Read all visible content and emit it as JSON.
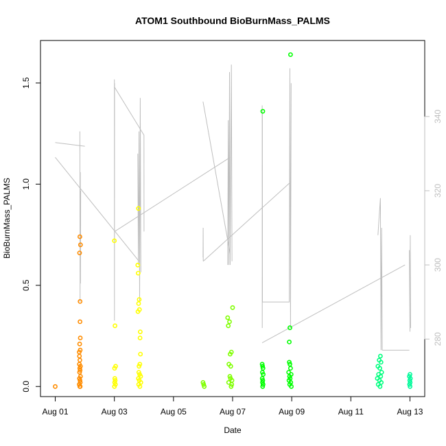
{
  "chart_data": {
    "type": "scatter",
    "title": "ATOM1 Southbound BioBurnMass_PALMS",
    "xlabel": "Date",
    "ylabel": "BioBurnMass_PALMS",
    "xlim": [
      "2016-08-00T12:00",
      "2016-08-13T12:00"
    ],
    "ylim": [
      -0.05,
      1.71
    ],
    "x_ticks": [
      {
        "value": "2016-08-01",
        "label": "Aug 01"
      },
      {
        "value": "2016-08-03",
        "label": "Aug 03"
      },
      {
        "value": "2016-08-05",
        "label": "Aug 05"
      },
      {
        "value": "2016-08-07",
        "label": "Aug 07"
      },
      {
        "value": "2016-08-09",
        "label": "Aug 09"
      },
      {
        "value": "2016-08-11",
        "label": "Aug 11"
      },
      {
        "value": "2016-08-13",
        "label": "Aug 13"
      }
    ],
    "y_ticks": [
      {
        "value": 0.0,
        "label": "0.0"
      },
      {
        "value": 0.5,
        "label": "0.5"
      },
      {
        "value": 1.0,
        "label": "1.0"
      },
      {
        "value": 1.5,
        "label": "1.5"
      }
    ],
    "secondary_axis": {
      "side": "right",
      "color": "#bebebe",
      "ylim": [
        264.5,
        360.5
      ],
      "ticks": [
        {
          "value": 280,
          "label": "280"
        },
        {
          "value": 300,
          "label": "300"
        },
        {
          "value": 320,
          "label": "320"
        },
        {
          "value": 340,
          "label": "340"
        }
      ]
    },
    "grid": false,
    "legend": "none",
    "series": [
      {
        "color": "#ff8c00",
        "points": [
          [
            "2016-08-01T00:00",
            0.0
          ],
          [
            "2016-08-01T20:00",
            0.74
          ],
          [
            "2016-08-01T20:30",
            0.7
          ],
          [
            "2016-08-01T19:45",
            0.66
          ],
          [
            "2016-08-01T20:10",
            0.42
          ],
          [
            "2016-08-01T20:05",
            0.32
          ],
          [
            "2016-08-01T20:20",
            0.24
          ],
          [
            "2016-08-01T19:50",
            0.21
          ],
          [
            "2016-08-01T20:15",
            0.18
          ],
          [
            "2016-08-01T19:30",
            0.17
          ],
          [
            "2016-08-01T19:40",
            0.15
          ],
          [
            "2016-08-01T20:00",
            0.13
          ],
          [
            "2016-08-01T19:35",
            0.11
          ],
          [
            "2016-08-01T20:25",
            0.1
          ],
          [
            "2016-08-01T19:55",
            0.09
          ],
          [
            "2016-08-01T20:10",
            0.08
          ],
          [
            "2016-08-01T19:45",
            0.07
          ],
          [
            "2016-08-01T20:30",
            0.05
          ],
          [
            "2016-08-01T19:40",
            0.04
          ],
          [
            "2016-08-01T20:05",
            0.03
          ],
          [
            "2016-08-01T20:20",
            0.02
          ],
          [
            "2016-08-01T19:30",
            0.01
          ],
          [
            "2016-08-01T19:55",
            0.0
          ],
          [
            "2016-08-01T20:15",
            0.0
          ]
        ]
      },
      {
        "color": "#ffff00",
        "points": [
          [
            "2016-08-03T00:00",
            0.72
          ],
          [
            "2016-08-03T00:30",
            0.3
          ],
          [
            "2016-08-03T01:00",
            0.1
          ],
          [
            "2016-08-03T00:10",
            0.09
          ],
          [
            "2016-08-03T00:20",
            0.04
          ],
          [
            "2016-08-03T00:40",
            0.03
          ],
          [
            "2016-08-03T00:15",
            0.02
          ],
          [
            "2016-08-03T00:50",
            0.01
          ],
          [
            "2016-08-03T00:05",
            0.0
          ],
          [
            "2016-08-03T19:30",
            0.88
          ],
          [
            "2016-08-03T19:00",
            0.6
          ],
          [
            "2016-08-03T19:20",
            0.56
          ],
          [
            "2016-08-03T20:10",
            0.43
          ],
          [
            "2016-08-03T19:40",
            0.41
          ],
          [
            "2016-08-03T20:20",
            0.38
          ],
          [
            "2016-08-03T19:10",
            0.37
          ],
          [
            "2016-08-03T21:00",
            0.27
          ],
          [
            "2016-08-03T20:50",
            0.24
          ],
          [
            "2016-08-03T21:10",
            0.16
          ],
          [
            "2016-08-03T20:40",
            0.11
          ],
          [
            "2016-08-03T20:00",
            0.1
          ],
          [
            "2016-08-03T19:50",
            0.07
          ],
          [
            "2016-08-03T20:30",
            0.06
          ],
          [
            "2016-08-03T21:20",
            0.05
          ],
          [
            "2016-08-03T19:30",
            0.04
          ],
          [
            "2016-08-03T20:15",
            0.03
          ],
          [
            "2016-08-03T21:30",
            0.02
          ],
          [
            "2016-08-03T19:45",
            0.01
          ],
          [
            "2016-08-03T20:45",
            0.0
          ]
        ]
      },
      {
        "color": "#7fff00",
        "points": [
          [
            "2016-08-06T00:00",
            0.02
          ],
          [
            "2016-08-06T00:30",
            0.01
          ],
          [
            "2016-08-06T01:00",
            0.0
          ],
          [
            "2016-08-06T20:00",
            0.34
          ],
          [
            "2016-08-06T20:30",
            0.3
          ],
          [
            "2016-08-06T21:30",
            0.32
          ],
          [
            "2016-08-07T00:00",
            0.39
          ],
          [
            "2016-08-06T22:00",
            0.16
          ],
          [
            "2016-08-06T23:00",
            0.17
          ],
          [
            "2016-08-06T21:00",
            0.11
          ],
          [
            "2016-08-06T22:30",
            0.1
          ],
          [
            "2016-08-06T21:45",
            0.05
          ],
          [
            "2016-08-06T22:15",
            0.04
          ],
          [
            "2016-08-06T23:30",
            0.03
          ],
          [
            "2016-08-06T20:45",
            0.02
          ],
          [
            "2016-08-06T23:15",
            0.01
          ],
          [
            "2016-08-06T22:45",
            0.0
          ]
        ]
      },
      {
        "color": "#00ff00",
        "points": [
          [
            "2016-08-08T00:30",
            1.36
          ],
          [
            "2016-08-08T23:00",
            1.64
          ],
          [
            "2016-08-08T22:30",
            0.29
          ],
          [
            "2016-08-08T22:00",
            0.22
          ],
          [
            "2016-08-08T00:00",
            0.11
          ],
          [
            "2016-08-08T00:20",
            0.1
          ],
          [
            "2016-08-08T00:40",
            0.09
          ],
          [
            "2016-08-08T00:10",
            0.07
          ],
          [
            "2016-08-08T00:50",
            0.06
          ],
          [
            "2016-08-08T00:05",
            0.04
          ],
          [
            "2016-08-08T00:30",
            0.03
          ],
          [
            "2016-08-08T00:15",
            0.02
          ],
          [
            "2016-08-08T00:45",
            0.01
          ],
          [
            "2016-08-08T00:25",
            0.0
          ],
          [
            "2016-08-08T22:00",
            0.12
          ],
          [
            "2016-08-08T22:30",
            0.11
          ],
          [
            "2016-08-08T23:00",
            0.09
          ],
          [
            "2016-08-08T21:30",
            0.07
          ],
          [
            "2016-08-08T23:30",
            0.06
          ],
          [
            "2016-08-08T22:15",
            0.05
          ],
          [
            "2016-08-08T22:45",
            0.04
          ],
          [
            "2016-08-08T21:45",
            0.03
          ],
          [
            "2016-08-08T23:15",
            0.02
          ],
          [
            "2016-08-08T22:20",
            0.01
          ],
          [
            "2016-08-08T23:40",
            0.0
          ]
        ]
      },
      {
        "color": "#00ff7f",
        "points": [
          [
            "2016-08-12T00:00",
            0.15
          ],
          [
            "2016-08-11T23:00",
            0.13
          ],
          [
            "2016-08-12T00:30",
            0.12
          ],
          [
            "2016-08-11T22:00",
            0.1
          ],
          [
            "2016-08-11T23:30",
            0.09
          ],
          [
            "2016-08-12T01:00",
            0.07
          ],
          [
            "2016-08-11T22:30",
            0.06
          ],
          [
            "2016-08-12T00:15",
            0.05
          ],
          [
            "2016-08-11T21:30",
            0.04
          ],
          [
            "2016-08-11T23:15",
            0.03
          ],
          [
            "2016-08-12T00:45",
            0.02
          ],
          [
            "2016-08-11T22:15",
            0.01
          ],
          [
            "2016-08-11T23:45",
            0.0
          ]
        ]
      },
      {
        "color": "#00fa9a",
        "points": [
          [
            "2016-08-13T00:00",
            0.06
          ],
          [
            "2016-08-12T23:30",
            0.05
          ],
          [
            "2016-08-13T00:20",
            0.04
          ],
          [
            "2016-08-12T23:50",
            0.03
          ],
          [
            "2016-08-13T00:10",
            0.02
          ],
          [
            "2016-08-12T23:40",
            0.01
          ],
          [
            "2016-08-13T00:05",
            0.0
          ]
        ]
      }
    ],
    "secondary_series": {
      "color": "#bebebe",
      "segments": [
        [
          [
            "2016-08-01T00:00",
            333
          ],
          [
            "2016-08-02T00:00",
            332
          ]
        ],
        [
          [
            "2016-08-01T00:00",
            329
          ],
          [
            "2016-08-03T20:00",
            301
          ]
        ],
        [
          [
            "2016-08-01T20:00",
            336
          ],
          [
            "2016-08-01T20:10",
            290
          ],
          [
            "2016-08-01T20:20",
            325
          ],
          [
            "2016-08-01T20:30",
            295
          ],
          [
            "2016-08-01T20:40",
            320
          ]
        ],
        [
          [
            "2016-08-03T00:00",
            350
          ],
          [
            "2016-08-03T00:05",
            285
          ],
          [
            "2016-08-03T00:10",
            349
          ]
        ],
        [
          [
            "2016-08-03T00:00",
            348
          ],
          [
            "2016-08-04T00:00",
            335
          ],
          [
            "2016-08-04T00:05",
            309
          ]
        ],
        [
          [
            "2016-08-03T00:10",
            309
          ],
          [
            "2016-08-06T22:00",
            329
          ]
        ],
        [
          [
            "2016-08-03T19:00",
            330
          ],
          [
            "2016-08-03T19:30",
            300
          ],
          [
            "2016-08-03T20:00",
            336
          ],
          [
            "2016-08-03T20:30",
            290
          ],
          [
            "2016-08-03T21:00",
            345
          ],
          [
            "2016-08-03T21:30",
            298
          ]
        ],
        [
          [
            "2016-08-06T00:00",
            344
          ],
          [
            "2016-08-06T22:00",
            303
          ]
        ],
        [
          [
            "2016-08-06T00:00",
            302
          ],
          [
            "2016-08-06T00:05",
            310
          ],
          [
            "2016-08-06T00:10",
            301
          ]
        ],
        [
          [
            "2016-08-06T00:10",
            301
          ],
          [
            "2016-08-08T22:00",
            322
          ]
        ],
        [
          [
            "2016-08-06T20:00",
            300
          ],
          [
            "2016-08-06T20:30",
            339
          ],
          [
            "2016-08-06T21:00",
            300
          ],
          [
            "2016-08-06T21:30",
            352
          ],
          [
            "2016-08-06T22:00",
            300
          ],
          [
            "2016-08-06T23:00",
            354
          ],
          [
            "2016-08-06T23:30",
            301
          ]
        ],
        [
          [
            "2016-08-08T00:00",
            343
          ],
          [
            "2016-08-08T00:05",
            283
          ],
          [
            "2016-08-08T00:10",
            341
          ],
          [
            "2016-08-08T00:15",
            290
          ]
        ],
        [
          [
            "2016-08-08T00:15",
            290
          ],
          [
            "2016-08-08T22:00",
            290
          ],
          [
            "2016-08-08T22:30",
            353
          ],
          [
            "2016-08-08T23:00",
            283
          ],
          [
            "2016-08-08T23:30",
            349
          ]
        ],
        [
          [
            "2016-08-08T00:00",
            279
          ],
          [
            "2016-08-12T20:00",
            300
          ]
        ],
        [
          [
            "2016-08-11T22:00",
            308
          ],
          [
            "2016-08-12T00:00",
            318
          ],
          [
            "2016-08-12T00:30",
            277
          ],
          [
            "2016-08-12T01:00",
            310
          ],
          [
            "2016-08-12T01:30",
            277
          ]
        ],
        [
          [
            "2016-08-12T01:30",
            277
          ],
          [
            "2016-08-12T23:30",
            277
          ]
        ],
        [
          [
            "2016-08-12T23:30",
            304
          ],
          [
            "2016-08-13T00:00",
            282
          ],
          [
            "2016-08-13T00:15",
            308
          ],
          [
            "2016-08-13T00:30",
            283
          ]
        ]
      ]
    }
  }
}
